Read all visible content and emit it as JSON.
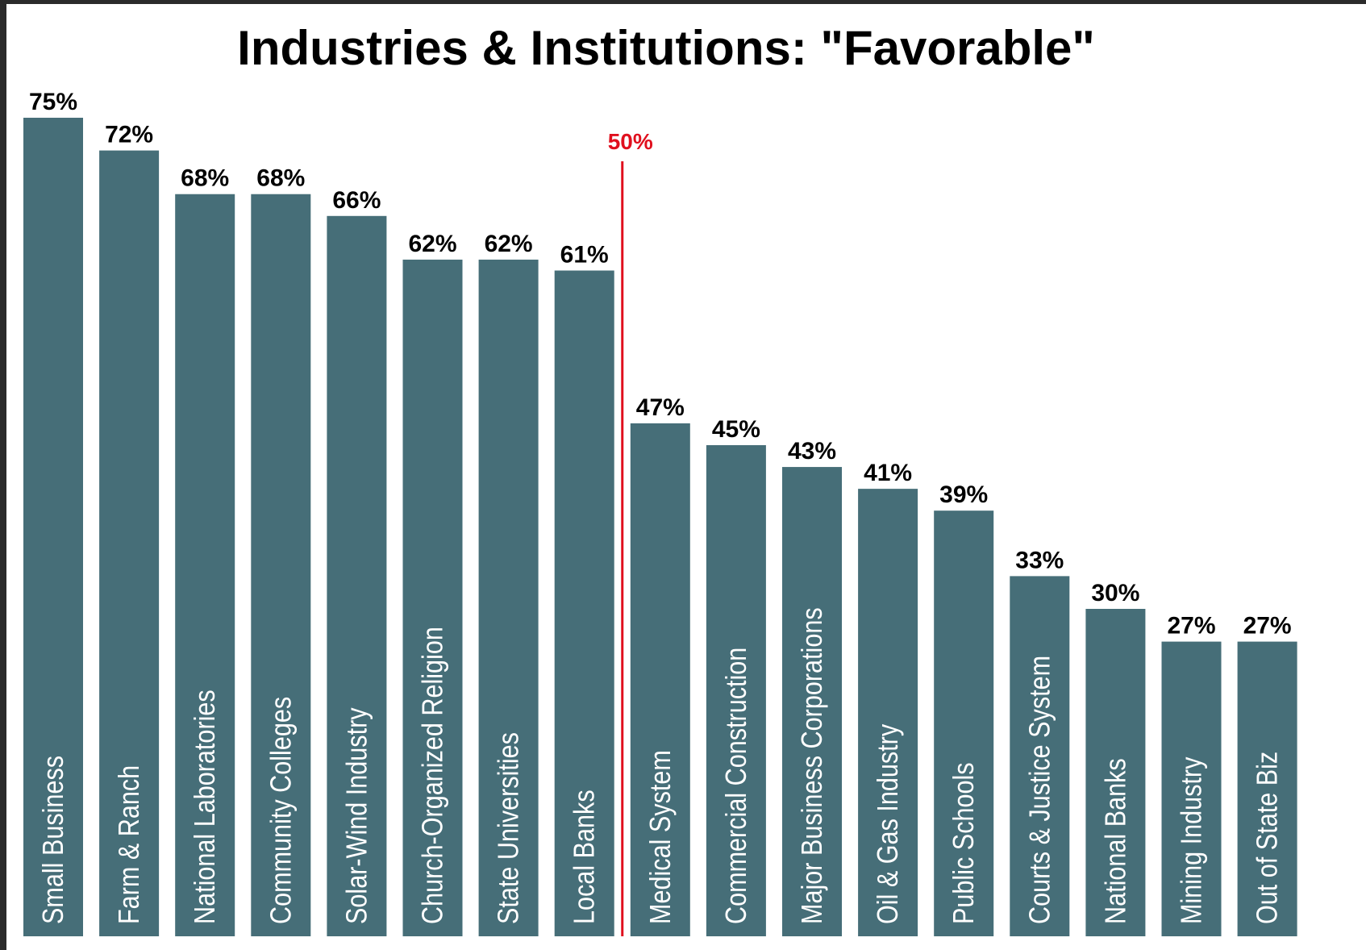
{
  "chart_data": {
    "type": "bar",
    "title": "Industries & Institutions: \"Favorable\"",
    "categories": [
      "Small Business",
      "Farm & Ranch",
      "National Laboratories",
      "Community Colleges",
      "Solar-Wind Industry",
      "Church-Organized Religion",
      "State Universities",
      "Local Banks",
      "Medical System",
      "Commercial Construction",
      "Major Business Corporations",
      "Oil & Gas Industry",
      "Public Schools",
      "Courts & Justice System",
      "National Banks",
      "Mining Industry",
      "Out of State Biz"
    ],
    "values": [
      75,
      72,
      68,
      68,
      66,
      62,
      62,
      61,
      47,
      45,
      43,
      41,
      39,
      33,
      30,
      27,
      27
    ],
    "value_labels": [
      "75%",
      "72%",
      "68%",
      "68%",
      "66%",
      "62%",
      "62%",
      "61%",
      "47%",
      "45%",
      "43%",
      "41%",
      "39%",
      "33%",
      "30%",
      "27%",
      "27%"
    ],
    "color": "#466e78",
    "ylim": [
      0,
      75
    ],
    "reference_line": {
      "value": 50,
      "label": "50%",
      "color": "#e0101e"
    }
  }
}
